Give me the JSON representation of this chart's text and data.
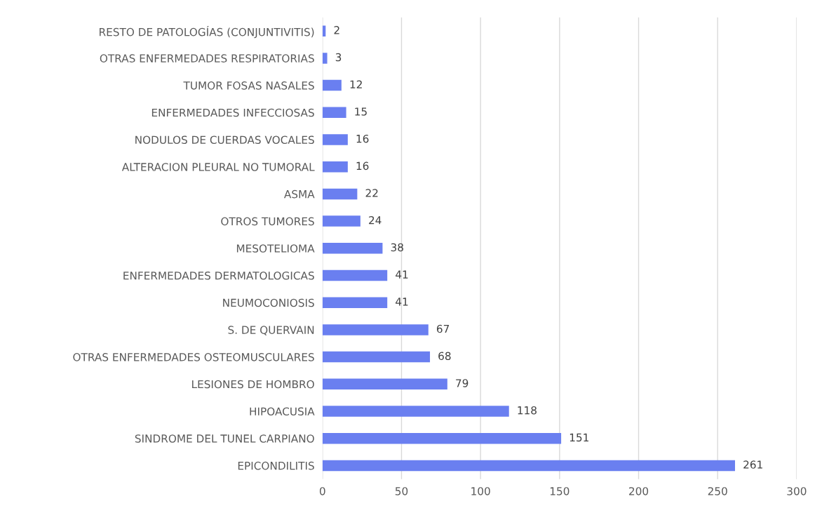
{
  "chart_data": {
    "type": "bar",
    "orientation": "horizontal",
    "categories": [
      "RESTO DE PATOLOGÍAS (CONJUNTIVITIS)",
      "OTRAS ENFERMEDADES RESPIRATORIAS",
      "TUMOR FOSAS NASALES",
      "ENFERMEDADES INFECCIOSAS",
      "NODULOS DE CUERDAS VOCALES",
      "ALTERACION PLEURAL NO TUMORAL",
      "ASMA",
      "OTROS TUMORES",
      "MESOTELIOMA",
      "ENFERMEDADES DERMATOLOGICAS",
      "NEUMOCONIOSIS",
      "S. DE QUERVAIN",
      "OTRAS ENFERMEDADES OSTEOMUSCULARES",
      "LESIONES DE HOMBRO",
      "HIPOACUSIA",
      "SINDROME DEL TUNEL CARPIANO",
      "EPICONDILITIS"
    ],
    "values": [
      2,
      3,
      12,
      15,
      16,
      16,
      22,
      24,
      38,
      41,
      41,
      67,
      68,
      79,
      118,
      151,
      261
    ],
    "color": "#6a7ff0",
    "xlim": [
      0,
      300
    ],
    "xticks": [
      0,
      50,
      100,
      150,
      200,
      250,
      300
    ],
    "grid": "x",
    "data_labels": true
  }
}
